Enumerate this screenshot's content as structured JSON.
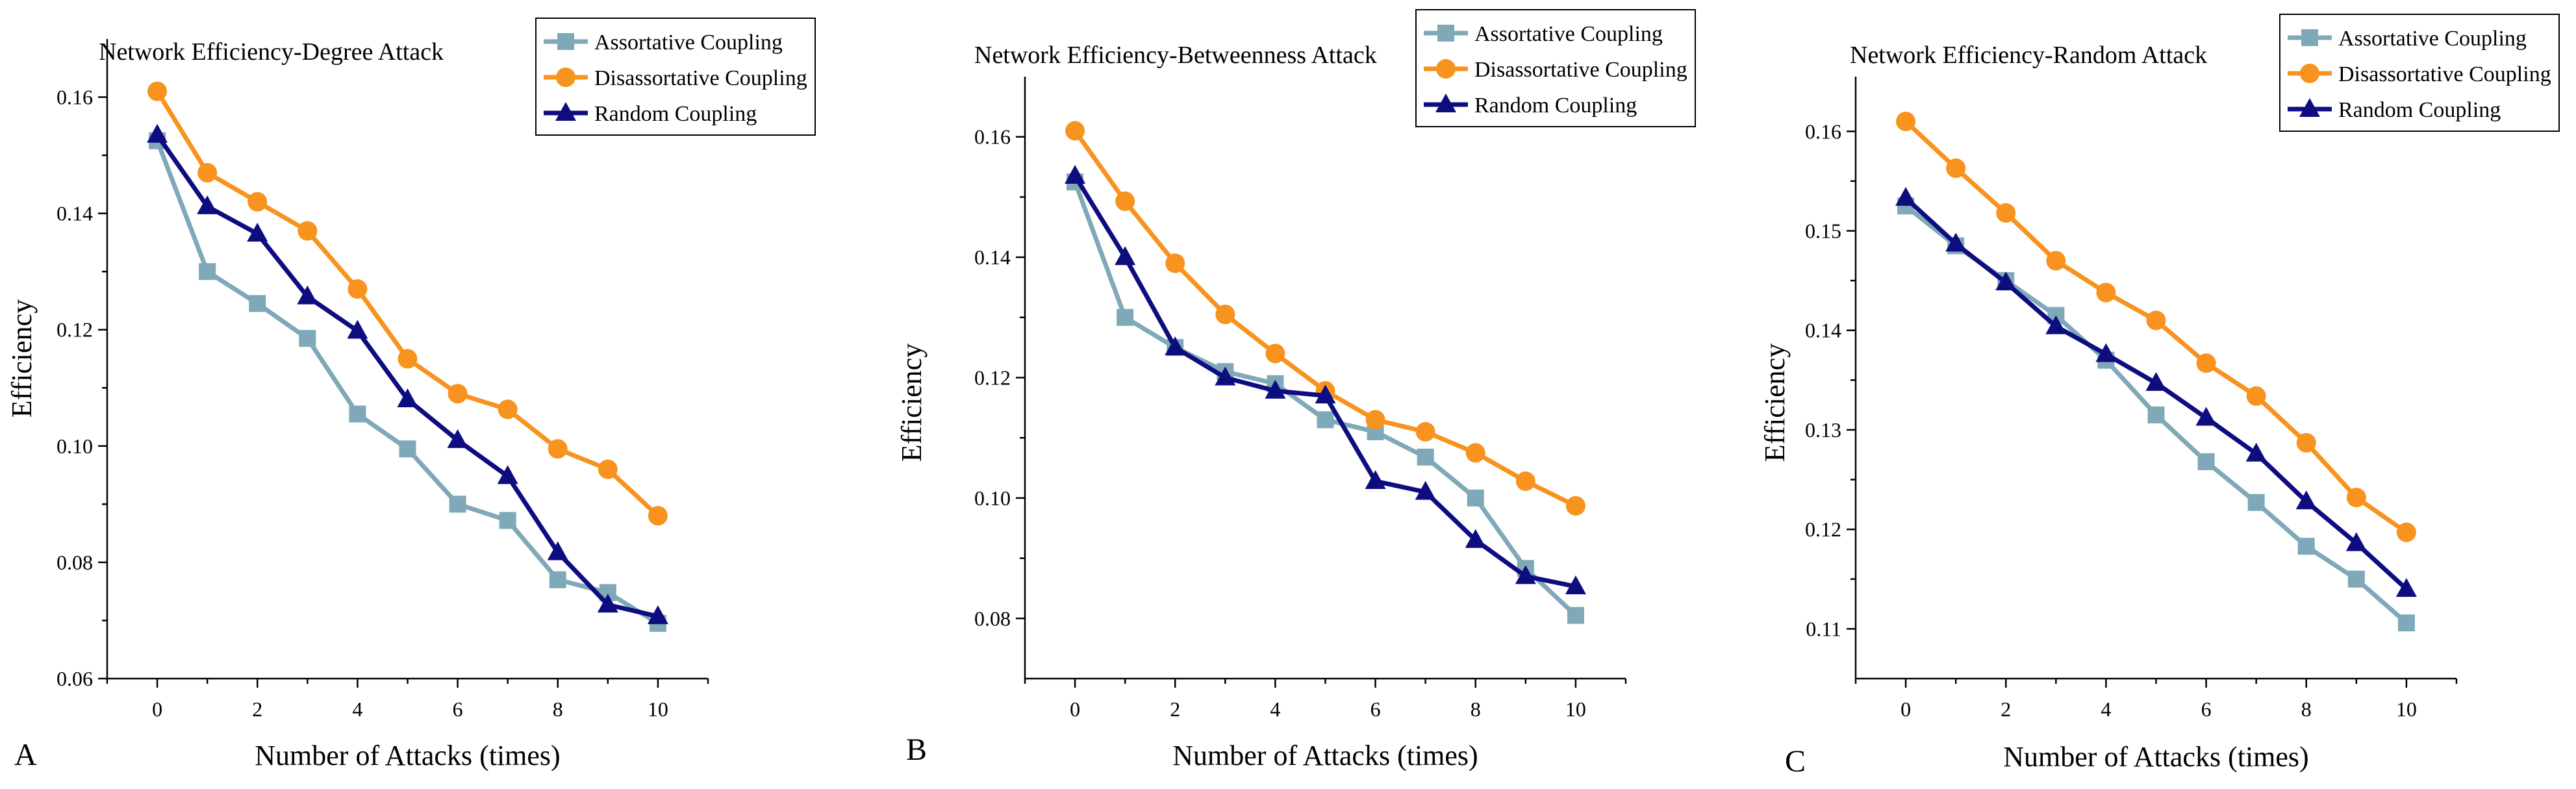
{
  "figure": {
    "colors": {
      "assortative": "#7fa8b8",
      "disassortative": "#f7931e",
      "random": "#0d0d80",
      "axis": "#000000",
      "legend_border": "#000000"
    },
    "x_label": "Number of Attacks (times)"
  },
  "chart_data": [
    {
      "type": "line",
      "panel": "A",
      "title": "Network Efficiency-Degree Attack",
      "xlabel": "Number of Attacks (times)",
      "ylabel": "Efficiency",
      "xlim": [
        -1,
        11
      ],
      "ylim": [
        0.06,
        0.17
      ],
      "xticks": [
        0,
        2,
        4,
        6,
        8,
        10
      ],
      "xtick_labels": [
        "0",
        "2",
        "4",
        "6",
        "8",
        "10"
      ],
      "yticks": [
        0.06,
        0.08,
        0.1,
        0.12,
        0.14,
        0.16
      ],
      "ytick_labels": [
        "0.06",
        "0.08",
        "0.10",
        "0.12",
        "0.14",
        "0.16"
      ],
      "legend_position": "top-right",
      "x": [
        0,
        1,
        2,
        3,
        4,
        5,
        6,
        7,
        8,
        9,
        10
      ],
      "series": [
        {
          "name": "Assortative Coupling",
          "color_key": "assortative",
          "marker": "square",
          "values": [
            0.1525,
            0.13,
            0.1245,
            0.1185,
            0.1055,
            0.0995,
            0.09,
            0.0872,
            0.077,
            0.0748,
            0.0695
          ]
        },
        {
          "name": "Disassortative Coupling",
          "color_key": "disassortative",
          "marker": "circle",
          "values": [
            0.161,
            0.147,
            0.142,
            0.137,
            0.127,
            0.115,
            0.109,
            0.1063,
            0.0995,
            0.096,
            0.088
          ]
        },
        {
          "name": "Random Coupling",
          "color_key": "random",
          "marker": "triangle",
          "values": [
            0.1535,
            0.1412,
            0.1365,
            0.1257,
            0.1198,
            0.108,
            0.101,
            0.0948,
            0.0817,
            0.0727,
            0.0707
          ]
        }
      ]
    },
    {
      "type": "line",
      "panel": "B",
      "title": "Network Efficiency-Betweenness Attack",
      "xlabel": "Number of Attacks (times)",
      "ylabel": "Efficiency",
      "xlim": [
        -1,
        11
      ],
      "ylim": [
        0.07,
        0.17
      ],
      "xticks": [
        0,
        2,
        4,
        6,
        8,
        10
      ],
      "xtick_labels": [
        "0",
        "2",
        "4",
        "6",
        "8",
        "10"
      ],
      "yticks": [
        0.08,
        0.1,
        0.12,
        0.14,
        0.16
      ],
      "ytick_labels": [
        "0.08",
        "0.10",
        "0.12",
        "0.14",
        "0.16"
      ],
      "legend_position": "top-right",
      "x": [
        0,
        1,
        2,
        3,
        4,
        5,
        6,
        7,
        8,
        9,
        10
      ],
      "series": [
        {
          "name": "Assortative Coupling",
          "color_key": "assortative",
          "marker": "square",
          "values": [
            0.1525,
            0.13,
            0.125,
            0.121,
            0.119,
            0.113,
            0.111,
            0.1068,
            0.1,
            0.0883,
            0.0805
          ]
        },
        {
          "name": "Disassortative Coupling",
          "color_key": "disassortative",
          "marker": "circle",
          "values": [
            0.161,
            0.1493,
            0.139,
            0.1305,
            0.124,
            0.1178,
            0.113,
            0.111,
            0.1075,
            0.1028,
            0.0987
          ]
        },
        {
          "name": "Random Coupling",
          "color_key": "random",
          "marker": "triangle",
          "values": [
            0.1535,
            0.14,
            0.125,
            0.12,
            0.1178,
            0.117,
            0.1028,
            0.101,
            0.093,
            0.087,
            0.0853
          ]
        }
      ]
    },
    {
      "type": "line",
      "panel": "C",
      "title": "Network Efficiency-Random Attack",
      "xlabel": "Number of Attacks (times)",
      "ylabel": "Efficiency",
      "xlim": [
        -1,
        11
      ],
      "ylim": [
        0.105,
        0.1655
      ],
      "xticks": [
        0,
        2,
        4,
        6,
        8,
        10
      ],
      "xtick_labels": [
        "0",
        "2",
        "4",
        "6",
        "8",
        "10"
      ],
      "yticks": [
        0.11,
        0.12,
        0.13,
        0.14,
        0.15,
        0.16
      ],
      "ytick_labels": [
        "0.11",
        "0.12",
        "0.13",
        "0.14",
        "0.15",
        "0.16"
      ],
      "legend_position": "top-right",
      "x": [
        0,
        1,
        2,
        3,
        4,
        5,
        6,
        7,
        8,
        9,
        10
      ],
      "series": [
        {
          "name": "Assortative Coupling",
          "color_key": "assortative",
          "marker": "square",
          "values": [
            0.1525,
            0.1485,
            0.145,
            0.1415,
            0.137,
            0.1315,
            0.1268,
            0.1227,
            0.1183,
            0.115,
            0.1106
          ]
        },
        {
          "name": "Disassortative Coupling",
          "color_key": "disassortative",
          "marker": "circle",
          "values": [
            0.161,
            0.1563,
            0.1518,
            0.147,
            0.1438,
            0.141,
            0.1367,
            0.1334,
            0.1287,
            0.1232,
            0.1197
          ]
        },
        {
          "name": "Random Coupling",
          "color_key": "random",
          "marker": "triangle",
          "values": [
            0.1533,
            0.1487,
            0.1448,
            0.1404,
            0.1376,
            0.1347,
            0.1312,
            0.1276,
            0.1228,
            0.1186,
            0.114
          ]
        }
      ]
    }
  ]
}
